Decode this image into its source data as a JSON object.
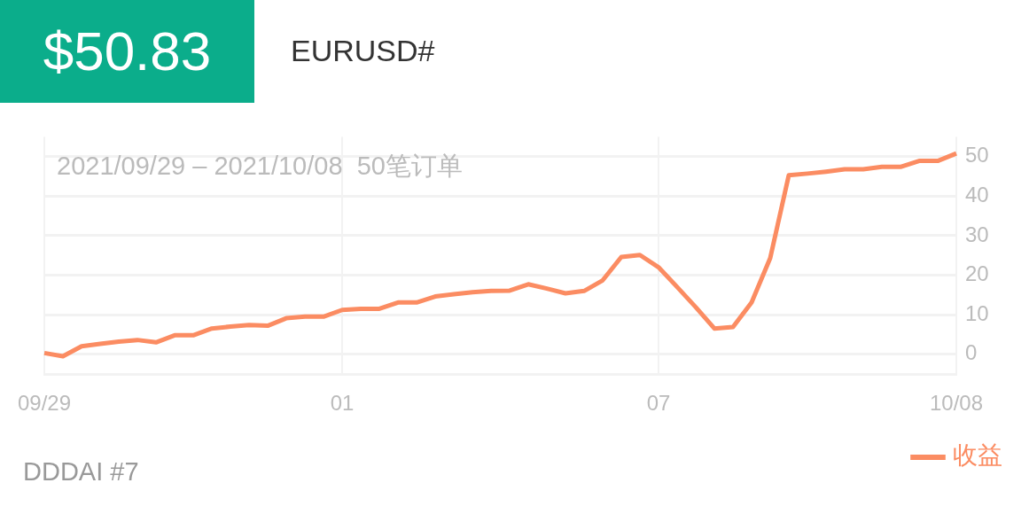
{
  "chart_data": {
    "type": "line",
    "title": "$50.83",
    "subtitle": "EURUSD#",
    "annotations": [
      "2021/09/29 – 2021/10/08  50笔订单",
      "DDDAI #7"
    ],
    "categories": [
      "09/29",
      null,
      null,
      null,
      null,
      null,
      null,
      null,
      null,
      null,
      null,
      null,
      null,
      null,
      null,
      null,
      "01",
      null,
      null,
      null,
      null,
      null,
      null,
      null,
      null,
      null,
      null,
      null,
      null,
      null,
      null,
      null,
      null,
      "07",
      null,
      null,
      null,
      null,
      null,
      null,
      null,
      null,
      null,
      null,
      null,
      null,
      null,
      null,
      null,
      "10/08"
    ],
    "series": [
      {
        "name": "收益",
        "color": "#fb8c62",
        "values": [
          0.3,
          -0.5,
          2.0,
          2.6,
          3.2,
          3.6,
          3.0,
          4.8,
          4.8,
          6.5,
          7.0,
          7.4,
          7.2,
          9.1,
          9.5,
          9.5,
          11.2,
          11.5,
          11.5,
          13.1,
          13.1,
          14.6,
          15.2,
          15.7,
          16.0,
          16.1,
          17.7,
          16.6,
          15.4,
          16.0,
          18.7,
          24.6,
          25.1,
          22.0,
          17.0,
          11.9,
          6.5,
          6.9,
          13.1,
          24.3,
          45.3,
          45.7,
          46.2,
          46.8,
          46.8,
          47.4,
          47.4,
          48.9,
          48.9,
          50.8
        ]
      }
    ],
    "ylim": [
      -5,
      55
    ],
    "yticks": [
      0,
      10,
      20,
      30,
      40,
      50
    ],
    "grid": true,
    "legend": "bottom right",
    "marker": "none",
    "line_style": "solid"
  }
}
